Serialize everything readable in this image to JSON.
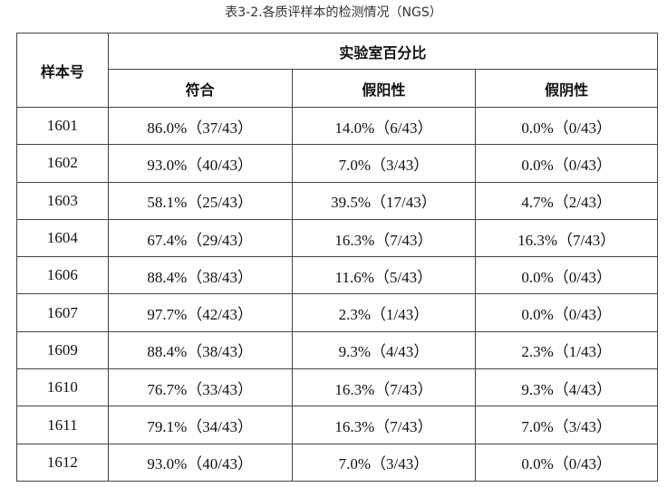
{
  "title": "表3-2.各质评样本的检测情况（NGS）",
  "table": {
    "header": {
      "sample": "样本号",
      "group": "实验室百分比",
      "columns": [
        "符合",
        "假阳性",
        "假阴性"
      ]
    },
    "rows": [
      [
        "1601",
        "86.0%（37/43）",
        "14.0%（6/43）",
        "0.0%（0/43）"
      ],
      [
        "1602",
        "93.0%（40/43）",
        "7.0%（3/43）",
        "0.0%（0/43）"
      ],
      [
        "1603",
        "58.1%（25/43）",
        "39.5%（17/43）",
        "4.7%（2/43）"
      ],
      [
        "1604",
        "67.4%（29/43）",
        "16.3%（7/43）",
        "16.3%（7/43）"
      ],
      [
        "1606",
        "88.4%（38/43）",
        "11.6%（5/43）",
        "0.0%（0/43）"
      ],
      [
        "1607",
        "97.7%（42/43）",
        "2.3%（1/43）",
        "0.0%（0/43）"
      ],
      [
        "1609",
        "88.4%（38/43）",
        "9.3%（4/43）",
        "2.3%（1/43）"
      ],
      [
        "1610",
        "76.7%（33/43）",
        "16.3%（7/43）",
        "9.3%（4/43）"
      ],
      [
        "1611",
        "79.1%（34/43）",
        "16.3%（7/43）",
        "7.0%（3/43）"
      ],
      [
        "1612",
        "93.0%（40/43）",
        "7.0%（3/43）",
        "0.0%（0/43）"
      ]
    ]
  }
}
